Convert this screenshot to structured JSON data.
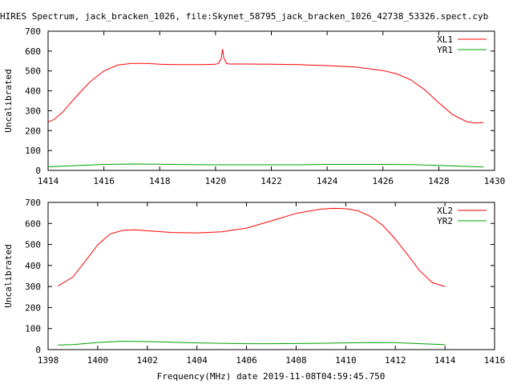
{
  "title": "HIRES Spectrum, jack_bracken_1026, file:Skynet_58795_jack_bracken_1026_42738_53326.spect.cyb",
  "xlabel": "Frequency(MHz) date 2019-11-08T04:59:45.750",
  "chart_data": [
    {
      "type": "line",
      "ylabel": "Uncalibrated",
      "xlim": [
        1414,
        1430
      ],
      "ylim": [
        0,
        700
      ],
      "xticks": [
        1414,
        1416,
        1418,
        1420,
        1422,
        1424,
        1426,
        1428,
        1430
      ],
      "yticks": [
        0,
        100,
        200,
        300,
        400,
        500,
        600,
        700
      ],
      "legend_position": "top-right",
      "series": [
        {
          "name": "XL1",
          "color": "#ff0000",
          "x": [
            1414.0,
            1414.2,
            1414.5,
            1415.0,
            1415.5,
            1416.0,
            1416.5,
            1417.0,
            1417.5,
            1418.0,
            1418.5,
            1419.0,
            1419.5,
            1420.0,
            1420.1,
            1420.2,
            1420.25,
            1420.3,
            1420.4,
            1420.5,
            1421.0,
            1422.0,
            1423.0,
            1424.0,
            1425.0,
            1426.0,
            1426.5,
            1427.0,
            1427.5,
            1428.0,
            1428.5,
            1429.0,
            1429.3,
            1429.6
          ],
          "y": [
            243,
            255,
            290,
            370,
            445,
            500,
            530,
            538,
            538,
            534,
            532,
            532,
            532,
            534,
            538,
            560,
            610,
            565,
            537,
            535,
            535,
            534,
            532,
            527,
            520,
            502,
            485,
            455,
            405,
            340,
            280,
            245,
            238,
            240
          ]
        },
        {
          "name": "YR1",
          "color": "#00a000",
          "x": [
            1414.0,
            1415.0,
            1416.0,
            1417.0,
            1418.0,
            1419.0,
            1420.0,
            1421.0,
            1422.0,
            1423.0,
            1424.0,
            1425.0,
            1426.0,
            1427.0,
            1428.0,
            1429.0,
            1429.6
          ],
          "y": [
            18,
            24,
            30,
            32,
            31,
            29,
            28,
            28,
            28,
            28,
            30,
            30,
            30,
            29,
            25,
            20,
            17
          ]
        }
      ]
    },
    {
      "type": "line",
      "ylabel": "Uncalibrated",
      "xlim": [
        1398,
        1416
      ],
      "ylim": [
        0,
        700
      ],
      "xticks": [
        1398,
        1400,
        1402,
        1404,
        1406,
        1408,
        1410,
        1412,
        1414,
        1416
      ],
      "yticks": [
        0,
        100,
        200,
        300,
        400,
        500,
        600,
        700
      ],
      "legend_position": "top-right",
      "series": [
        {
          "name": "XL2",
          "color": "#ff0000",
          "x": [
            1398.4,
            1399.0,
            1399.5,
            1400.0,
            1400.5,
            1401.0,
            1401.5,
            1402.0,
            1403.0,
            1404.0,
            1405.0,
            1406.0,
            1407.0,
            1408.0,
            1409.0,
            1409.5,
            1410.0,
            1410.5,
            1411.0,
            1411.5,
            1412.0,
            1412.5,
            1413.0,
            1413.5,
            1414.0
          ],
          "y": [
            302,
            345,
            420,
            498,
            550,
            567,
            570,
            565,
            557,
            555,
            560,
            578,
            612,
            648,
            668,
            672,
            670,
            660,
            633,
            590,
            525,
            450,
            372,
            318,
            300
          ]
        },
        {
          "name": "YR2",
          "color": "#00a000",
          "x": [
            1398.4,
            1399.0,
            1400.0,
            1401.0,
            1402.0,
            1403.0,
            1404.0,
            1405.0,
            1406.0,
            1407.0,
            1408.0,
            1409.0,
            1410.0,
            1411.0,
            1412.0,
            1413.0,
            1414.0
          ],
          "y": [
            22,
            24,
            34,
            40,
            38,
            35,
            32,
            30,
            28,
            28,
            29,
            30,
            32,
            34,
            33,
            28,
            24
          ]
        }
      ]
    }
  ]
}
